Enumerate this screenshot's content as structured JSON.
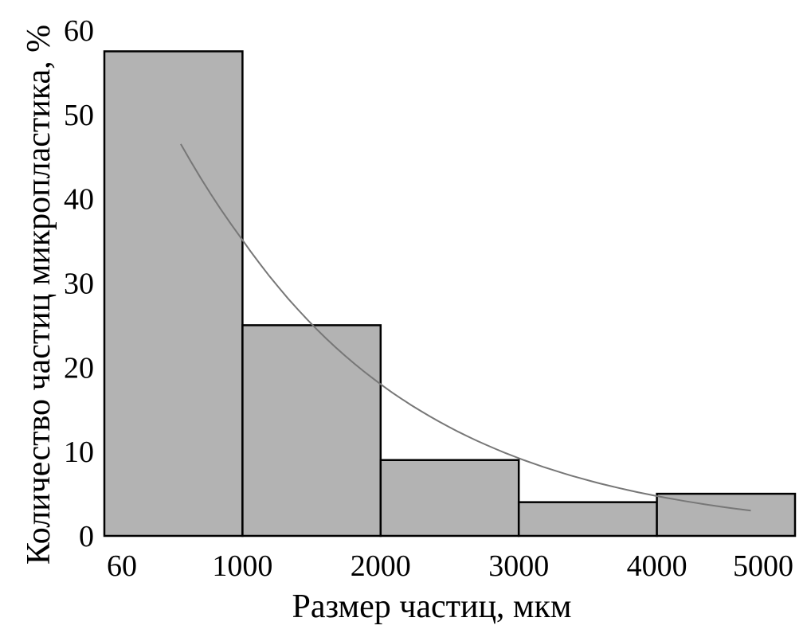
{
  "chart_data": {
    "type": "bar",
    "categories": [
      "60–1000",
      "1000–2000",
      "2000–3000",
      "3000–4000",
      "4000–5000"
    ],
    "bin_edges": [
      60,
      1000,
      2000,
      3000,
      4000,
      5000
    ],
    "values": [
      57.5,
      25,
      9,
      4,
      5
    ],
    "x_tick_labels": [
      "60",
      "1000",
      "2000",
      "3000",
      "4000",
      "5000"
    ],
    "y_ticks": [
      0,
      10,
      20,
      30,
      40,
      50,
      60
    ],
    "ylim": [
      0,
      60
    ],
    "xlabel": "Размер частиц, мкм",
    "ylabel": "Количество частиц микропластика, %",
    "trendline": {
      "type": "exponential",
      "x_range": [
        580,
        4680
      ],
      "y_start": 46.5,
      "y_end": 3.0
    },
    "bar_color": "#b3b3b3",
    "trend_color": "#777777",
    "grid": false,
    "legend": "none"
  }
}
